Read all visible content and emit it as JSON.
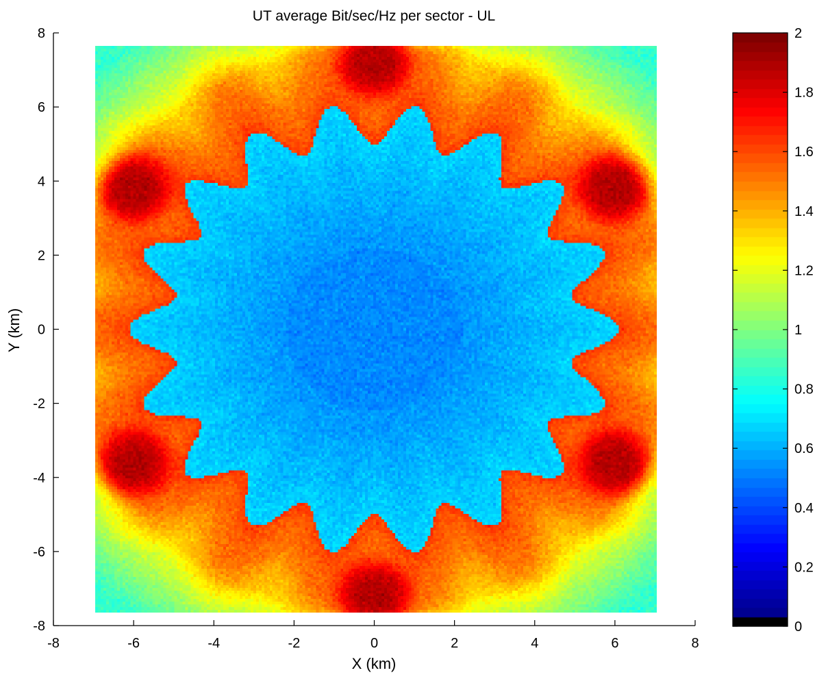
{
  "chart_data": {
    "type": "heatmap",
    "title": "UT average Bit/sec/Hz per sector - UL",
    "xlabel": "X (km)",
    "ylabel": "Y (km)",
    "xlim": [
      -8,
      8
    ],
    "ylim": [
      -8,
      8
    ],
    "data_extent": {
      "x": [
        -6.95,
        7.05
      ],
      "y": [
        -7.65,
        7.65
      ]
    },
    "x_ticks": [
      "-8",
      "-6",
      "-4",
      "-2",
      "0",
      "2",
      "4",
      "6",
      "8"
    ],
    "y_ticks": [
      "8",
      "6",
      "4",
      "2",
      "0",
      "-2",
      "-4",
      "-6",
      "-8"
    ],
    "colorbar": {
      "range": [
        0,
        2
      ],
      "colormap": "jet",
      "ticks": [
        "2",
        "1.8",
        "1.6",
        "1.4",
        "1.2",
        "1",
        "0.8",
        "0.6",
        "0.4",
        "0.2",
        "0"
      ],
      "lowest_color": "#000000"
    },
    "regions": [
      {
        "description": "central serving area",
        "value_approx": 0.55
      },
      {
        "description": "edge hotspots",
        "value_approx": 1.9,
        "centers": [
          [
            0,
            7.2
          ],
          [
            0,
            -7.2
          ],
          [
            -6,
            3.8
          ],
          [
            6,
            3.8
          ],
          [
            -6,
            -3.6
          ],
          [
            6,
            -3.6
          ]
        ]
      },
      {
        "description": "outer ring",
        "value_approx": 1.5
      },
      {
        "description": "corners",
        "value_approx": 0.85
      }
    ],
    "grid": false
  }
}
